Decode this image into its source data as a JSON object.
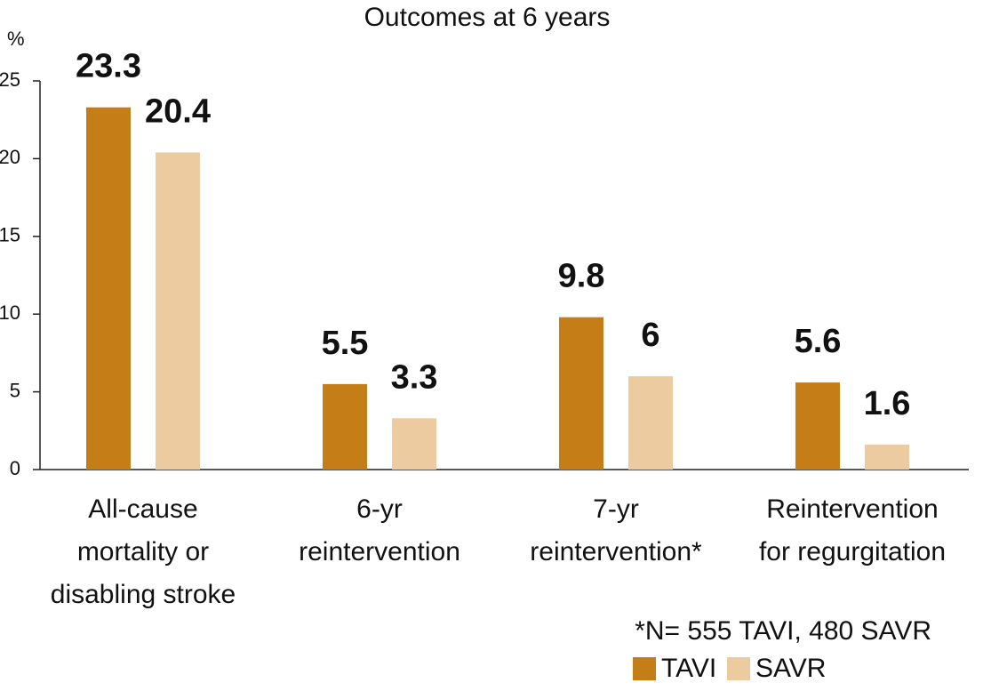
{
  "chart_data": {
    "type": "bar",
    "title": "Outcomes at 6 years",
    "y_label": "%",
    "categories": [
      [
        "All-cause",
        "mortality or",
        "disabling stroke"
      ],
      [
        "6-yr",
        "reintervention"
      ],
      [
        "7-yr",
        "reintervention*"
      ],
      [
        "Reintervention",
        "for regurgitation"
      ]
    ],
    "series": [
      {
        "name": "TAVI",
        "color": "#c47d17",
        "values": [
          23.3,
          5.5,
          9.8,
          5.6
        ]
      },
      {
        "name": "SAVR",
        "color": "#ebcb9f",
        "values": [
          20.4,
          3.3,
          6,
          1.6
        ]
      }
    ],
    "ylim": [
      0,
      25
    ],
    "yticks": [
      0,
      5,
      10,
      15,
      20,
      25
    ],
    "footnote": "*N= 555 TAVI, 480 SAVR"
  }
}
